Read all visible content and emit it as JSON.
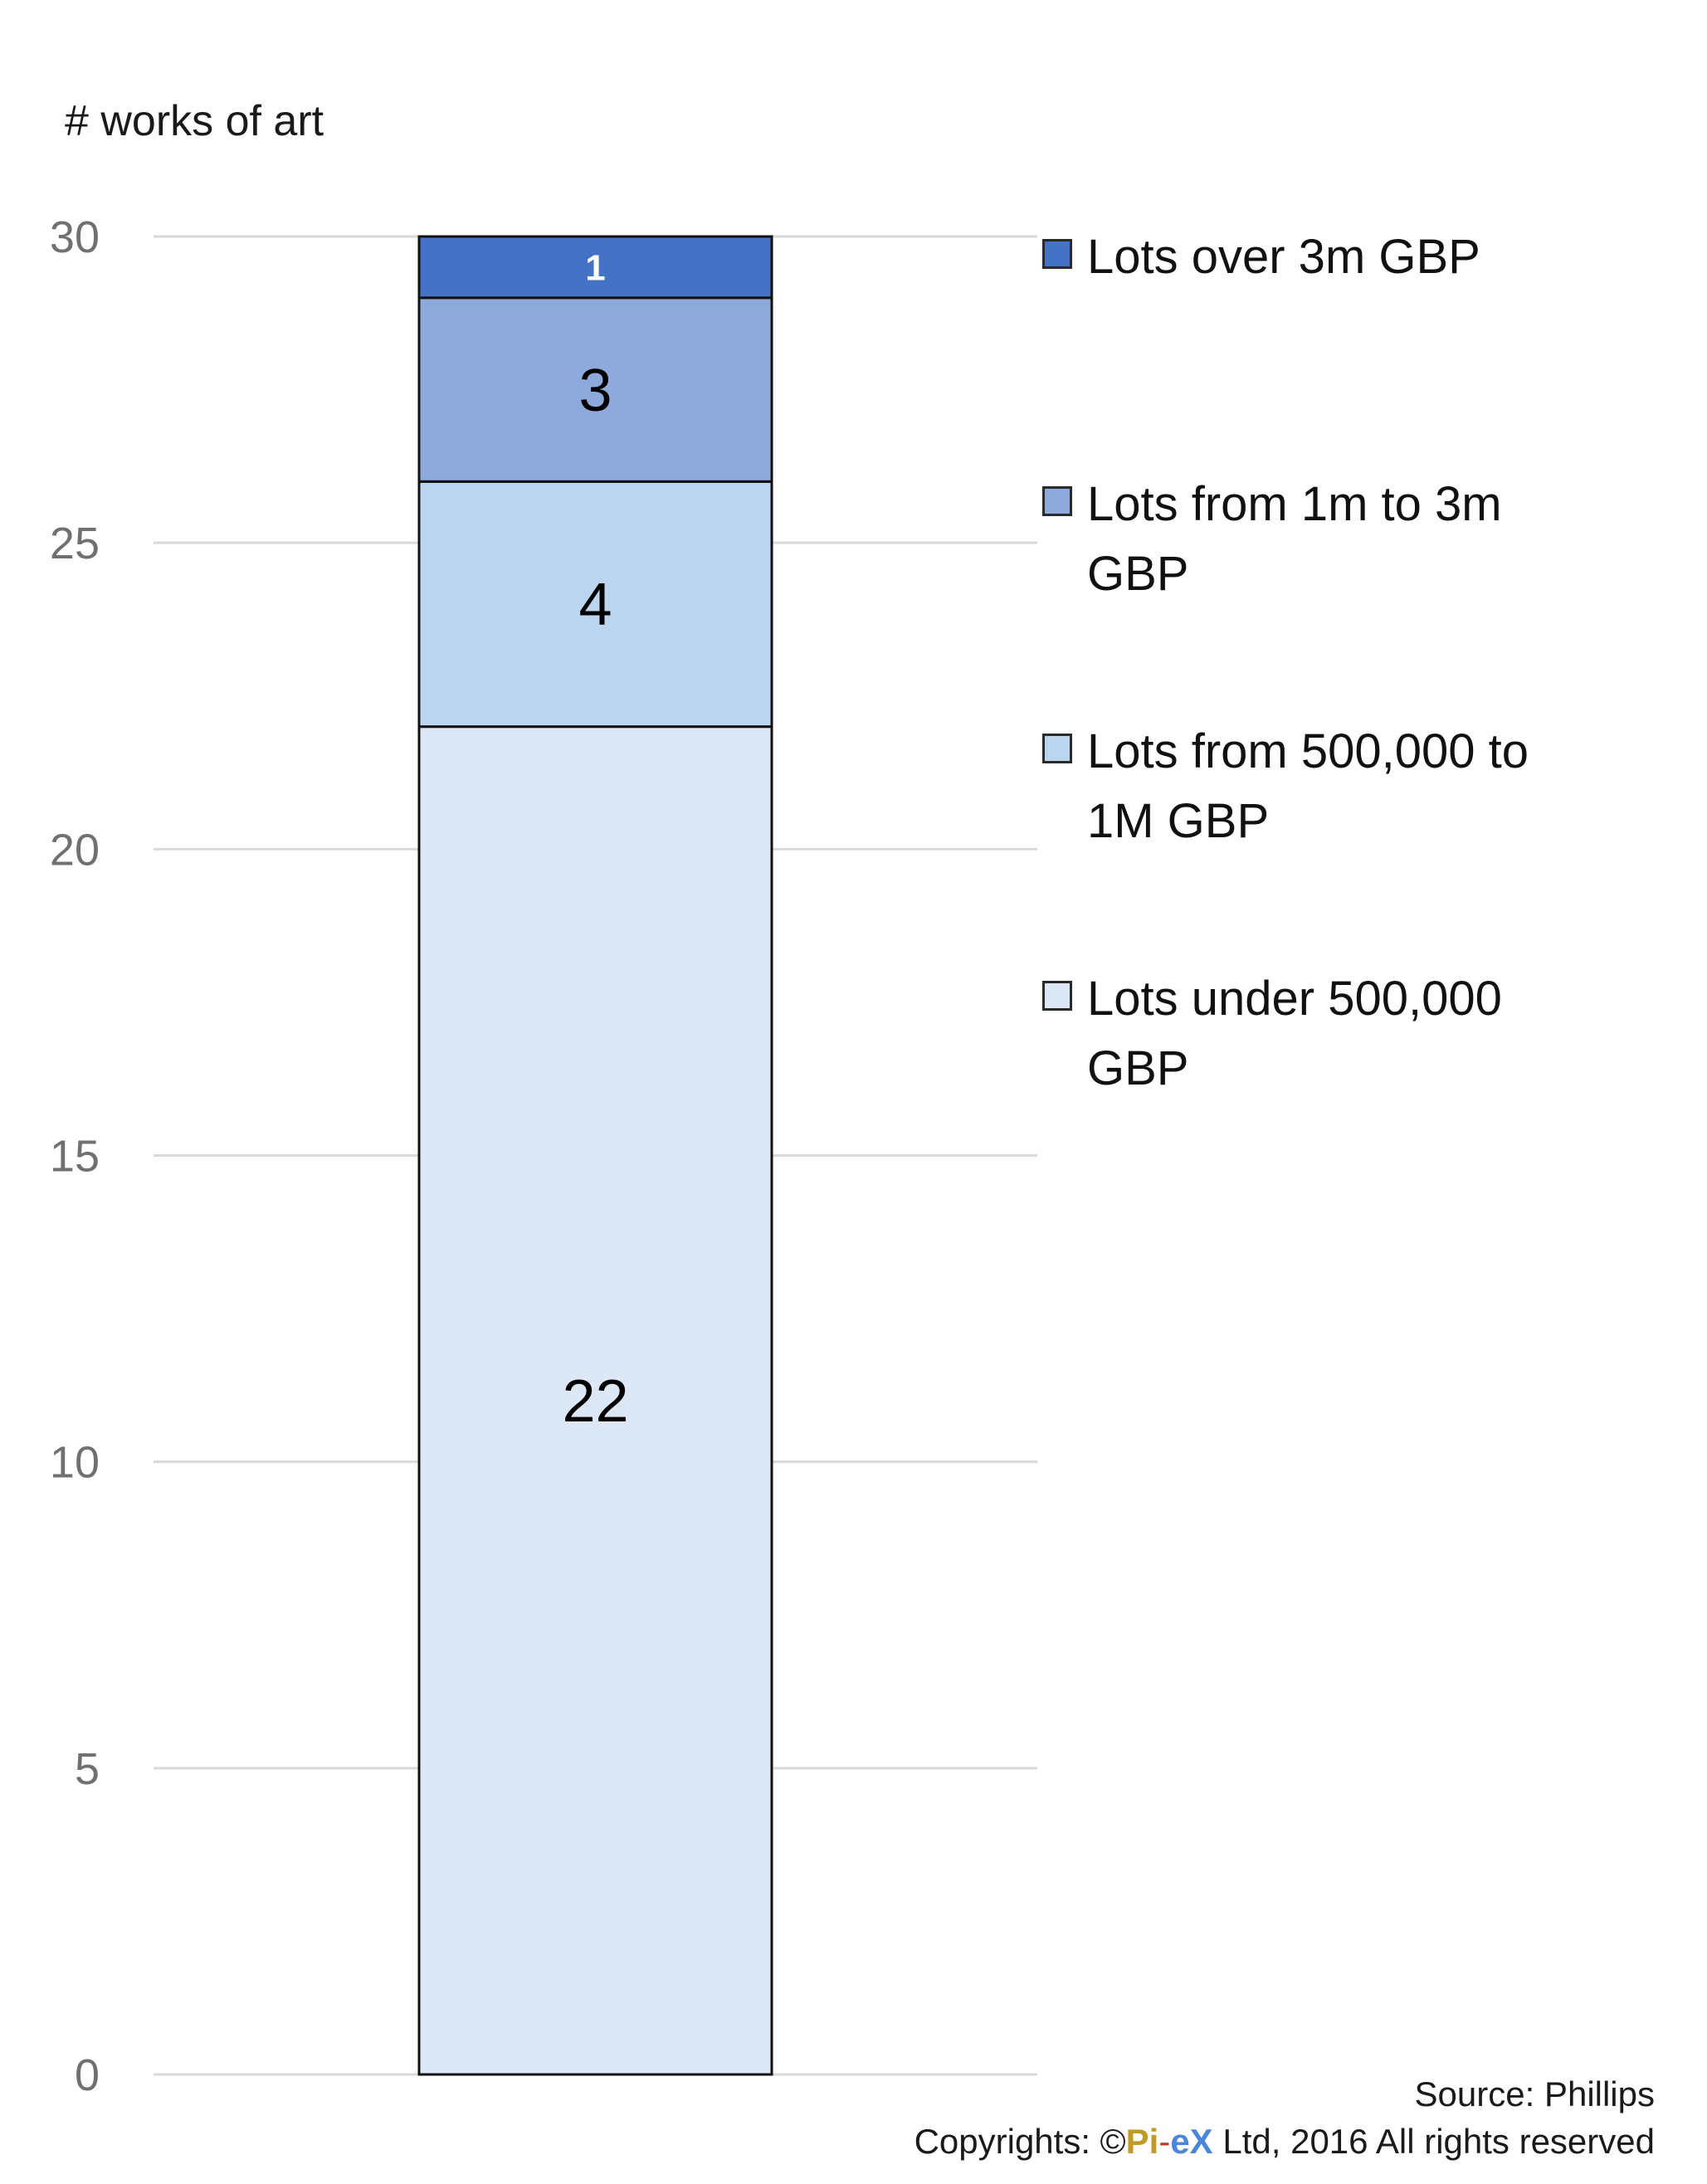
{
  "chart_data": {
    "type": "bar",
    "stacked": true,
    "ylabel": "# works of art",
    "ylim": [
      0,
      30
    ],
    "yticks": [
      0,
      5,
      10,
      15,
      20,
      25,
      30
    ],
    "grid": true,
    "legend_position": "right",
    "categories": [
      ""
    ],
    "series": [
      {
        "name": "Lots under 500,000 GBP",
        "values": [
          22
        ],
        "color": "#dce7f5",
        "label_color": "#000000"
      },
      {
        "name": "Lots from 500,000 to 1M GBP",
        "values": [
          4
        ],
        "color": "#bcd5ee",
        "label_color": "#000000"
      },
      {
        "name": "Lots from 1m to 3m GBP",
        "values": [
          3
        ],
        "color": "#8eaadc",
        "label_color": "#000000"
      },
      {
        "name": "Lots over 3m GBP",
        "values": [
          1
        ],
        "color": "#4472c4",
        "label_color": "#ffffff"
      }
    ]
  },
  "legend": {
    "items": [
      {
        "label": "Lots over 3m GBP",
        "color": "#4472c4"
      },
      {
        "label": "Lots from 1m to 3m GBP",
        "color": "#8eaadc"
      },
      {
        "label": "Lots from 500,000 to 1M GBP",
        "color": "#bcd5ee"
      },
      {
        "label": "Lots under 500,000 GBP",
        "color": "#dce7f5"
      }
    ]
  },
  "footer": {
    "source": "Source: Phillips",
    "copyright_prefix": "Copyrights: ©",
    "brand_pi": "Pi",
    "brand_dash": "-",
    "brand_ex": "eX",
    "copyright_suffix": " Ltd, 2016 All rights reserved"
  }
}
